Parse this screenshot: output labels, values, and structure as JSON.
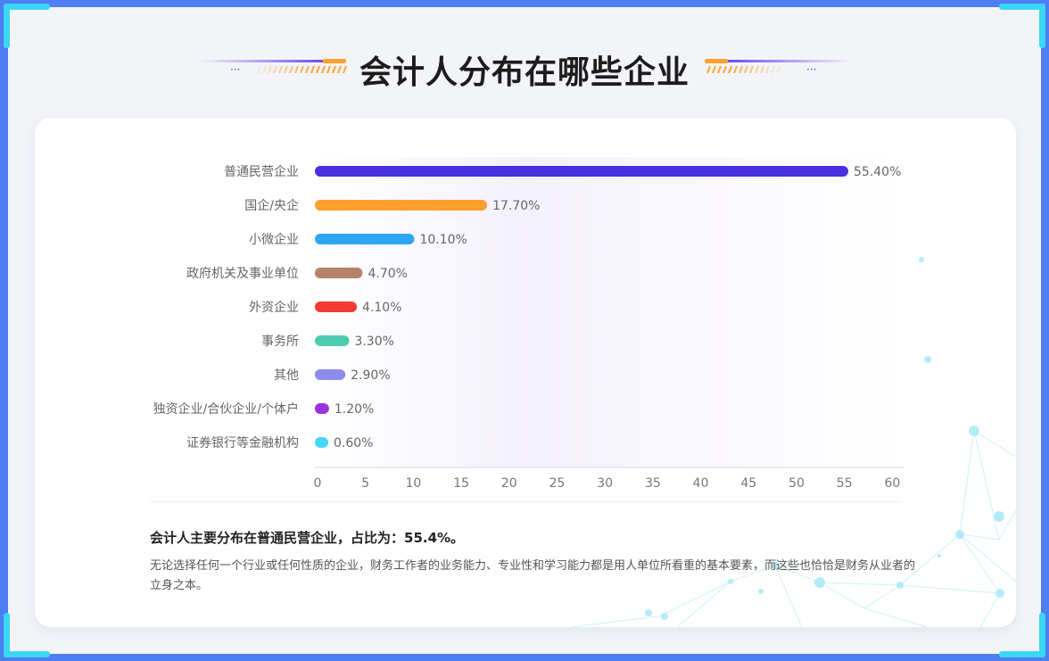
{
  "header": {
    "title": "会计人分布在哪些企业"
  },
  "chart_data": {
    "type": "bar",
    "orientation": "horizontal",
    "categories": [
      "普通民营企业",
      "国企/央企",
      "小微企业",
      "政府机关及事业单位",
      "外资企业",
      "事务所",
      "其他",
      "独资企业/合伙企业/个体户",
      "证券银行等金融机构"
    ],
    "values": [
      55.4,
      17.7,
      10.1,
      4.7,
      4.1,
      3.3,
      2.9,
      1.2,
      0.6
    ],
    "value_labels": [
      "55.40%",
      "17.70%",
      "10.10%",
      "4.70%",
      "4.10%",
      "3.30%",
      "2.90%",
      "1.20%",
      "0.60%"
    ],
    "colors": [
      "#4a2fe0",
      "#ff9f2e",
      "#2fa6f3",
      "#b5826a",
      "#f03c32",
      "#4dcdb0",
      "#8b8cec",
      "#9b32dc",
      "#46d6f7"
    ],
    "xticks": [
      0,
      5,
      10,
      15,
      20,
      25,
      30,
      35,
      40,
      45,
      50,
      55,
      60
    ],
    "xlim": [
      0,
      62
    ],
    "grid": false,
    "legend": "none"
  },
  "summary": {
    "headline": "会计人主要分布在普通民营企业，占比为：55.4%。",
    "body": "无论选择任何一个行业或任何性质的企业，财务工作者的业务能力、专业性和学习能力都是用人单位所看重的基本要素，而这些也恰恰是财务从业者的立身之本。"
  }
}
